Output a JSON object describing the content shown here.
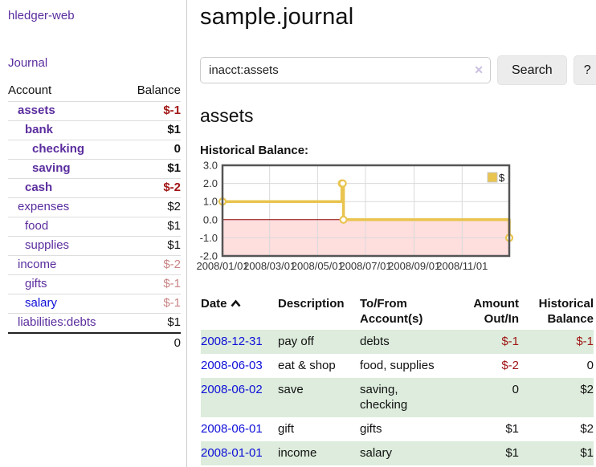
{
  "colors": {
    "link_purple": "#5b2d9e",
    "link_blue": "#0f0fd9",
    "negative_red": "#a11616",
    "negative_muted": "#c98585",
    "row_green": "#ddecdc",
    "button_bg": "#ececec",
    "chart_gold": "#e9c44f",
    "chart_negative_bg": "#ffdede",
    "chart_zero_line": "#8f0000",
    "chart_border": "#555555",
    "chart_grid": "#d9d9d9"
  },
  "sidebar": {
    "app_title": "hledger-web",
    "journal_link": "Journal",
    "accounts": {
      "header_account": "Account",
      "header_balance": "Balance",
      "rows": [
        {
          "label": "assets",
          "indent": 1,
          "bold": true,
          "link_style": "purple",
          "balance": "$-1",
          "balance_style": "neg"
        },
        {
          "label": "bank",
          "indent": 2,
          "bold": true,
          "link_style": "purple",
          "balance": "$1",
          "balance_style": "default"
        },
        {
          "label": "checking",
          "indent": 3,
          "bold": true,
          "link_style": "purple",
          "balance": "0",
          "balance_style": "default"
        },
        {
          "label": "saving",
          "indent": 3,
          "bold": true,
          "link_style": "purple",
          "balance": "$1",
          "balance_style": "default"
        },
        {
          "label": "cash",
          "indent": 2,
          "bold": true,
          "link_style": "purple",
          "balance": "$-2",
          "balance_style": "neg"
        },
        {
          "label": "expenses",
          "indent": 1,
          "bold": false,
          "link_style": "purple",
          "balance": "$2",
          "balance_style": "default"
        },
        {
          "label": "food",
          "indent": 2,
          "bold": false,
          "link_style": "purple",
          "balance": "$1",
          "balance_style": "default"
        },
        {
          "label": "supplies",
          "indent": 2,
          "bold": false,
          "link_style": "purple",
          "balance": "$1",
          "balance_style": "default"
        },
        {
          "label": "income",
          "indent": 1,
          "bold": false,
          "link_style": "purple",
          "balance": "$-2",
          "balance_style": "negmuted"
        },
        {
          "label": "gifts",
          "indent": 2,
          "bold": false,
          "link_style": "purple",
          "balance": "$-1",
          "balance_style": "negmuted"
        },
        {
          "label": "salary",
          "indent": 2,
          "bold": false,
          "link_style": "blue",
          "balance": "$-1",
          "balance_style": "negmuted"
        },
        {
          "label": "liabilities:debts",
          "indent": 1,
          "bold": false,
          "link_style": "purple",
          "balance": "$1",
          "balance_style": "default"
        }
      ],
      "total": "0"
    }
  },
  "main": {
    "title": "sample.journal",
    "search": {
      "value": "inacct:assets",
      "clear_icon": "✕",
      "button_label": "Search",
      "help_label": "?"
    },
    "account_heading": "assets",
    "chart_label": "Historical Balance:"
  },
  "chart_data": {
    "type": "line",
    "step": true,
    "title": "Historical Balance",
    "xlabel": "",
    "ylabel": "",
    "grid": true,
    "x_range": [
      "2008-01-01",
      "2008-12-31"
    ],
    "x_ticks": [
      "2008/01/01",
      "2008/03/01",
      "2008/05/01",
      "2008/07/01",
      "2008/09/01",
      "2008/11/01"
    ],
    "ylim": [
      -2,
      3
    ],
    "y_ticks": [
      3.0,
      2.0,
      1.0,
      0.0,
      -1.0,
      -2.0
    ],
    "legend": {
      "position": "top-right",
      "label": "$"
    },
    "series": [
      {
        "name": "$",
        "points": [
          [
            "2008-01-01",
            1
          ],
          [
            "2008-06-01",
            2
          ],
          [
            "2008-06-02",
            2
          ],
          [
            "2008-06-03",
            0
          ],
          [
            "2008-12-31",
            -1
          ]
        ]
      }
    ]
  },
  "register": {
    "headers": {
      "date": "Date",
      "description": "Description",
      "accounts": "To/From Account(s)",
      "amount": "Amount Out/In",
      "balance": "Historical Balance"
    },
    "rows": [
      {
        "date": "2008-12-31",
        "description": "pay off",
        "accounts": "debts",
        "amount": "$-1",
        "amount_neg": true,
        "balance": "$-1",
        "balance_neg": true
      },
      {
        "date": "2008-06-03",
        "description": "eat & shop",
        "accounts": "food, supplies",
        "amount": "$-2",
        "amount_neg": true,
        "balance": "0",
        "balance_neg": false
      },
      {
        "date": "2008-06-02",
        "description": "save",
        "accounts": "saving,\nchecking",
        "amount": "0",
        "amount_neg": false,
        "balance": "$2",
        "balance_neg": false
      },
      {
        "date": "2008-06-01",
        "description": "gift",
        "accounts": "gifts",
        "amount": "$1",
        "amount_neg": false,
        "balance": "$2",
        "balance_neg": false
      },
      {
        "date": "2008-01-01",
        "description": "income",
        "accounts": "salary",
        "amount": "$1",
        "amount_neg": false,
        "balance": "$1",
        "balance_neg": false
      }
    ]
  }
}
